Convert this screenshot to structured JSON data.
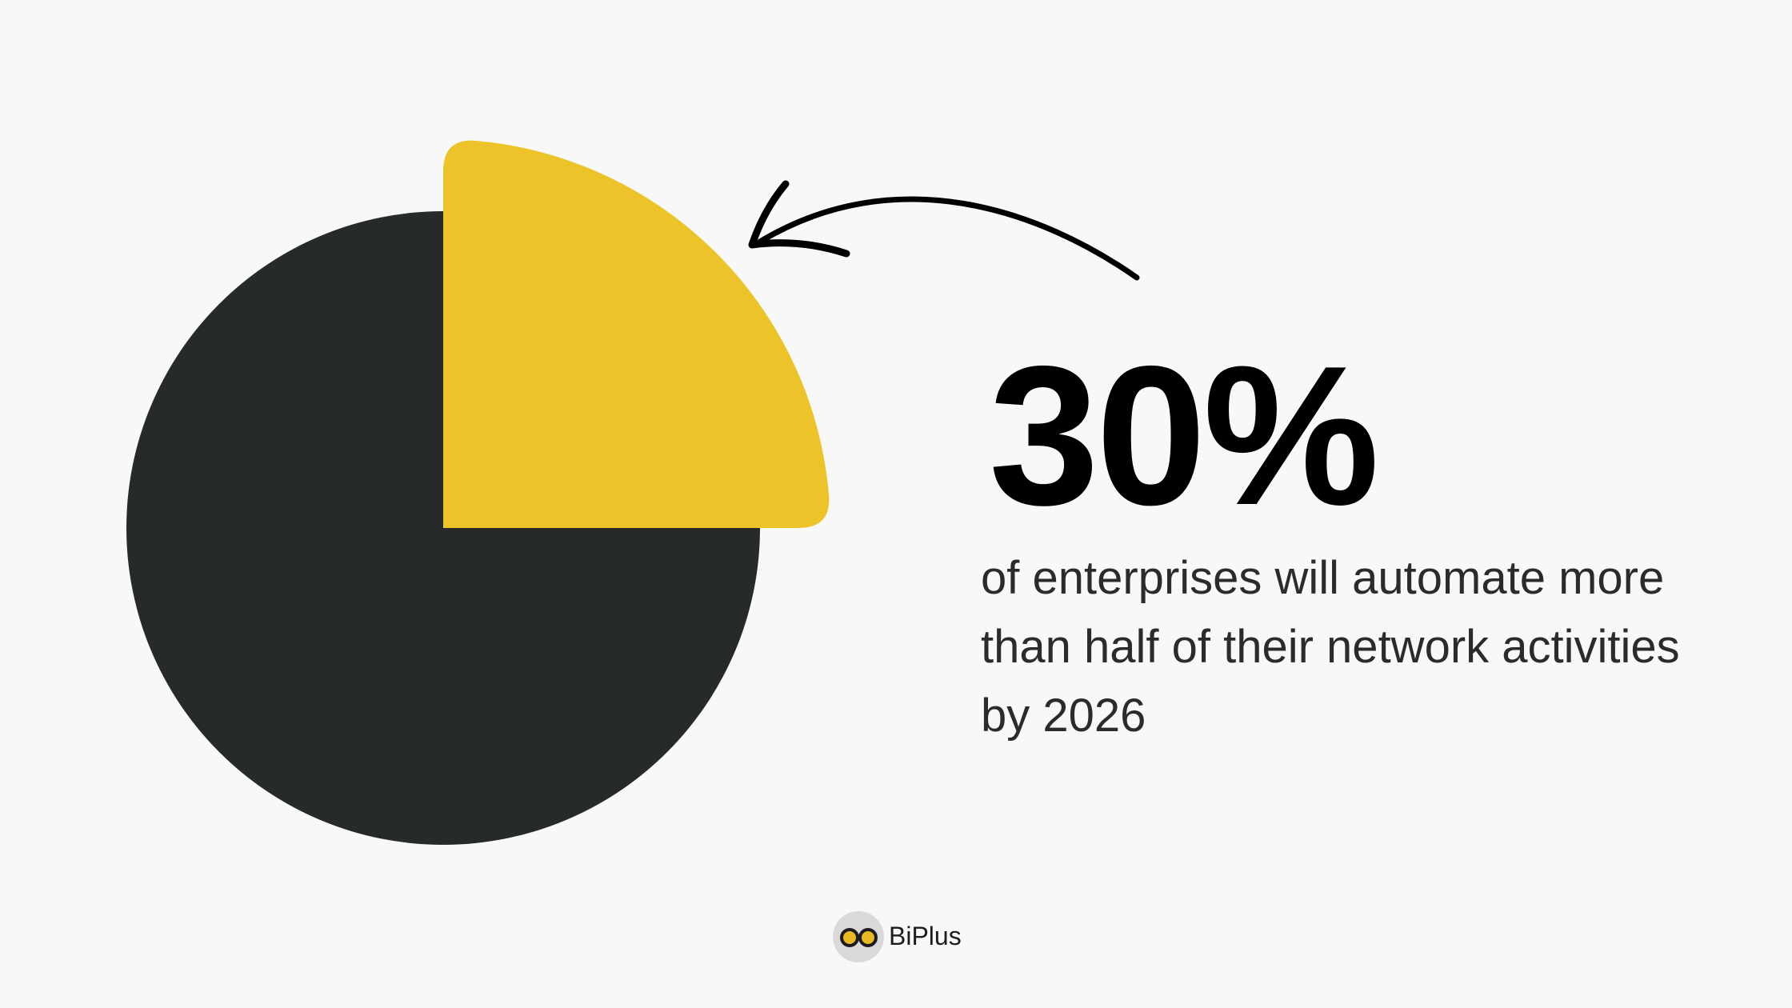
{
  "stat": {
    "value": "30%",
    "description": "of enterprises will automate more than half of their network activities by 2026"
  },
  "logo": {
    "text": "BiPlus"
  }
}
